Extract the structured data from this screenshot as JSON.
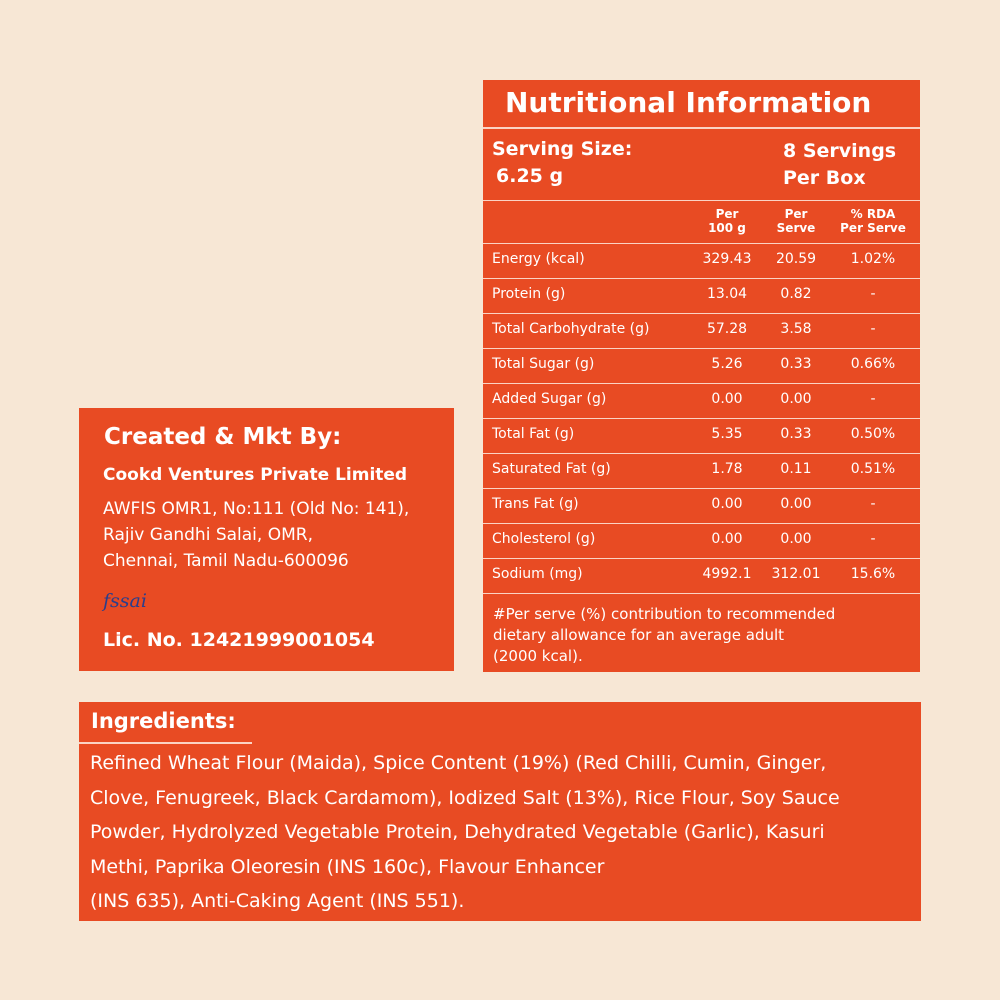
{
  "nutrition": {
    "title": "Nutritional Information",
    "serving_size": [
      "Serving Size:",
      "6.25 g"
    ],
    "servings": [
      "8 Servings",
      "Per Box"
    ],
    "columns": [
      [
        "Per",
        "100 g"
      ],
      [
        "Per",
        "Serve"
      ],
      [
        "% RDA",
        "Per Serve"
      ]
    ],
    "rows": [
      [
        "Energy (kcal)",
        "329.43",
        "20.59",
        "1.02%"
      ],
      [
        "Protein (g)",
        "13.04",
        "0.82",
        "-"
      ],
      [
        "Total Carbohydrate (g)",
        "57.28",
        "3.58",
        "-"
      ],
      [
        "Total Sugar (g)",
        "5.26",
        "0.33",
        "0.66%"
      ],
      [
        "Added Sugar (g)",
        "0.00",
        "0.00",
        "-"
      ],
      [
        "Total Fat (g)",
        "5.35",
        "0.33",
        "0.50%"
      ],
      [
        "Saturated Fat (g)",
        "1.78",
        "0.11",
        "0.51%"
      ],
      [
        "Trans Fat (g)",
        "0.00",
        "0.00",
        "-"
      ],
      [
        "Cholesterol (g)",
        "0.00",
        "0.00",
        "-"
      ],
      [
        "Sodium (mg)",
        "4992.1",
        "312.01",
        "15.6%"
      ]
    ],
    "footnote": [
      "#Per serve (%) contribution to recommended",
      "dietary allowance for an average adult",
      "(2000 kcal)."
    ]
  },
  "maker": {
    "title": "Created & Mkt By:",
    "company": "Cookd Ventures Private Limited",
    "address": [
      "AWFIS OMR1, No:111 (Old No: 141),",
      "Rajiv Gandhi Salai, OMR,",
      "Chennai, Tamil Nadu-600096"
    ],
    "logo": "fssai",
    "license": "Lic. No. 12421999001054"
  },
  "ingredients": {
    "title": "Ingredients:",
    "lines": [
      "Refined Wheat Flour (Maida), Spice Content (19%) (Red Chilli, Cumin, Ginger,",
      "Clove, Fenugreek, Black Cardamom), Iodized Salt (13%), Rice Flour, Soy Sauce",
      "Powder, Hydrolyzed Vegetable Protein, Dehydrated Vegetable (Garlic), Kasuri",
      "Methi, Paprika Oleoresin (INS 160c), Flavour Enhancer",
      "(INS 635), Anti-Caking Agent (INS 551)."
    ]
  }
}
